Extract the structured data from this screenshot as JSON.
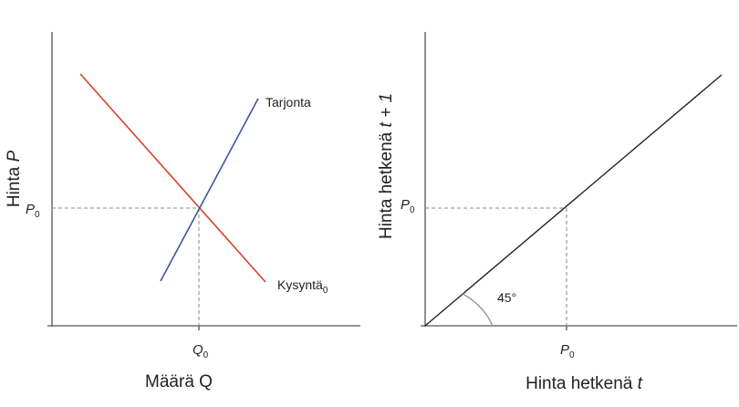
{
  "colors": {
    "axis": "#555555",
    "demand": "#d9402b",
    "supply": "#3a55a4",
    "diagonal": "#222222",
    "guide": "#888888",
    "text": "#222222"
  },
  "left_panel": {
    "ylabel_main": "Hinta ",
    "ylabel_italic": "P",
    "xlabel": "Määrä Q",
    "p0_main": "P",
    "p0_sub": "0",
    "q0_main": "Q",
    "q0_sub": "0",
    "supply_label": "Tarjonta",
    "demand_label_main": "Kysyntä",
    "demand_label_sub": "0"
  },
  "right_panel": {
    "ylabel_main": "Hinta hetkenä ",
    "ylabel_italic": "t + 1",
    "xlabel_main": "Hinta hetkenä ",
    "xlabel_italic": "t",
    "p0y_main": "P",
    "p0y_sub": "0",
    "p0x_main": "P",
    "p0x_sub": "0",
    "angle_label": "45°"
  }
}
